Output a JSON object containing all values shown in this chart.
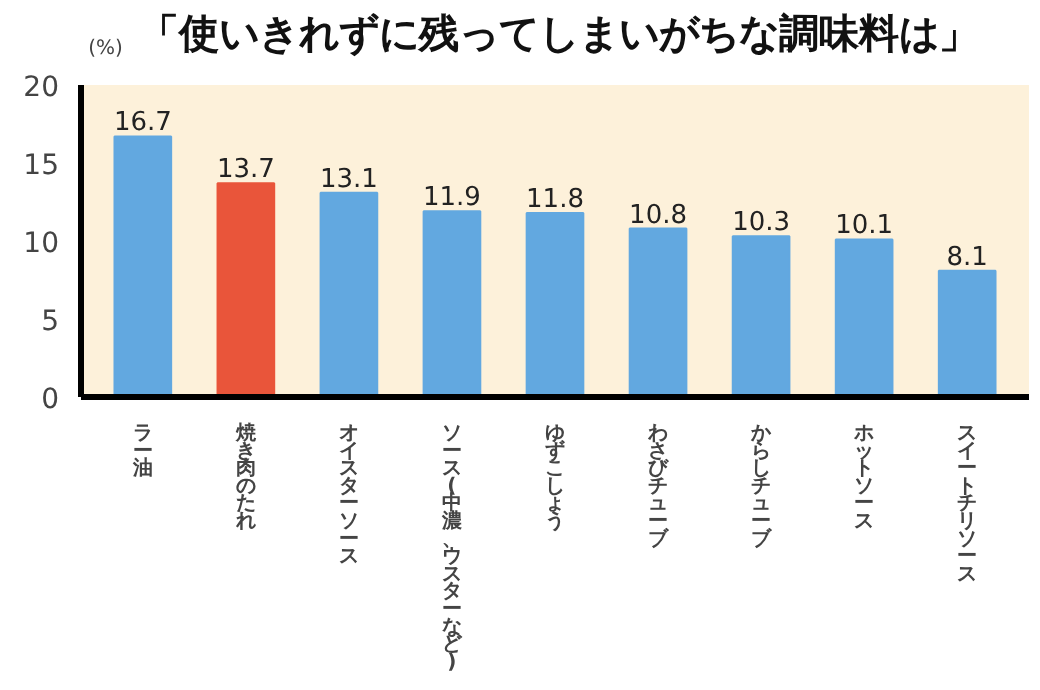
{
  "chart_data": {
    "type": "bar",
    "title": "「使いきれずに残ってしまいがちな調味料は」",
    "ylabel": "(%)",
    "categories": [
      "ラー油",
      "焼き肉のたれ",
      "オイスターソース",
      "ソース(中濃、ウスターなど)",
      "ゆずこしょう",
      "わさびチューブ",
      "からしチューブ",
      "ホットソース",
      "スイートチリソース"
    ],
    "values": [
      16.7,
      13.7,
      13.1,
      11.9,
      11.8,
      10.8,
      10.3,
      10.1,
      8.1
    ],
    "colors": [
      "#62a8e0",
      "#e9553a",
      "#62a8e0",
      "#62a8e0",
      "#62a8e0",
      "#62a8e0",
      "#62a8e0",
      "#62a8e0",
      "#62a8e0"
    ],
    "ylim": [
      0,
      20
    ],
    "yticks": [
      0,
      5,
      10,
      15,
      20
    ],
    "grid": false,
    "data_labels": true
  }
}
